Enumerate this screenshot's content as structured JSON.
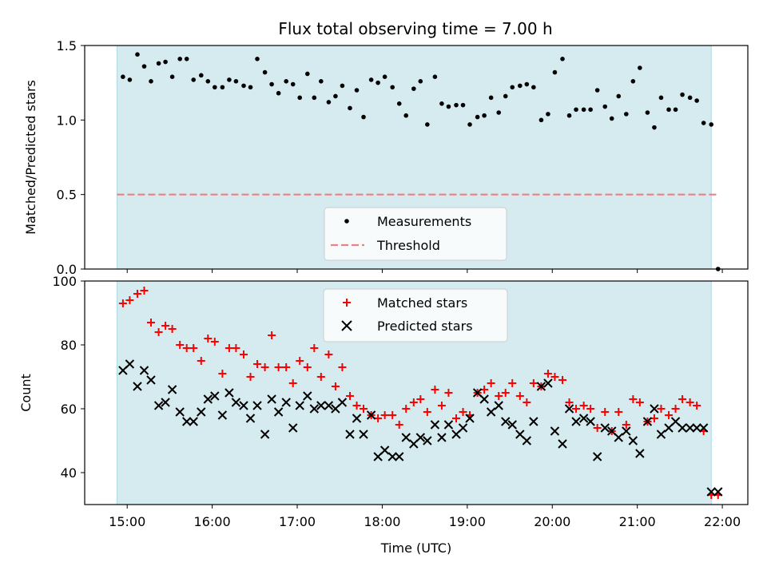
{
  "figure": {
    "title": "Flux total observing time = 7.00 h"
  },
  "chart_data": [
    {
      "type": "scatter",
      "ylabel": "Matched/Predicted stars",
      "xlabel": "",
      "ylim": [
        0,
        1.5
      ],
      "yticks": [
        0.0,
        0.5,
        1.0,
        1.5
      ],
      "ytick_labels": [
        "0.0",
        "0.5",
        "1.0",
        "1.5"
      ],
      "observing_window": {
        "start_hours": 14.88,
        "end_hours": 21.87,
        "color": "#d5ebf0"
      },
      "legend": {
        "position": "bottom-center",
        "entries": [
          "Measurements",
          "Threshold"
        ]
      },
      "threshold": {
        "name": "Threshold",
        "value": 0.5,
        "color": "#f08080",
        "xrange": [
          14.88,
          21.95
        ]
      },
      "series": [
        {
          "name": "Measurements",
          "color": "#000000",
          "x": [
            14.95,
            15.03,
            15.12,
            15.2,
            15.28,
            15.37,
            15.45,
            15.53,
            15.62,
            15.7,
            15.78,
            15.87,
            15.95,
            16.03,
            16.12,
            16.2,
            16.28,
            16.37,
            16.45,
            16.53,
            16.62,
            16.7,
            16.78,
            16.87,
            16.95,
            17.03,
            17.12,
            17.2,
            17.28,
            17.37,
            17.45,
            17.53,
            17.62,
            17.7,
            17.78,
            17.87,
            17.95,
            18.03,
            18.12,
            18.2,
            18.28,
            18.37,
            18.45,
            18.53,
            18.62,
            18.7,
            18.78,
            18.87,
            18.95,
            19.03,
            19.12,
            19.2,
            19.28,
            19.37,
            19.45,
            19.53,
            19.62,
            19.7,
            19.78,
            19.87,
            19.95,
            20.03,
            20.12,
            20.2,
            20.28,
            20.37,
            20.45,
            20.53,
            20.62,
            20.7,
            20.78,
            20.87,
            20.95,
            21.03,
            21.12,
            21.2,
            21.28,
            21.37,
            21.45,
            21.53,
            21.62,
            21.7,
            21.78,
            21.87,
            21.95
          ],
          "y": [
            1.29,
            1.27,
            1.44,
            1.36,
            1.26,
            1.38,
            1.39,
            1.29,
            1.41,
            1.41,
            1.27,
            1.3,
            1.26,
            1.22,
            1.22,
            1.27,
            1.26,
            1.23,
            1.22,
            1.41,
            1.32,
            1.24,
            1.18,
            1.26,
            1.24,
            1.15,
            1.31,
            1.15,
            1.26,
            1.12,
            1.16,
            1.23,
            1.08,
            1.2,
            1.02,
            1.27,
            1.25,
            1.29,
            1.22,
            1.11,
            1.03,
            1.21,
            1.26,
            0.97,
            1.29,
            1.11,
            1.09,
            1.1,
            1.1,
            0.97,
            1.02,
            1.03,
            1.15,
            1.05,
            1.16,
            1.22,
            1.23,
            1.24,
            1.22,
            1.0,
            1.04,
            1.32,
            1.41,
            1.03,
            1.07,
            1.07,
            1.07,
            1.2,
            1.09,
            1.01,
            1.16,
            1.04,
            1.26,
            1.35,
            1.05,
            0.95,
            1.15,
            1.07,
            1.07,
            1.17,
            1.15,
            1.13,
            0.98,
            0.97,
            0.0
          ]
        }
      ]
    },
    {
      "type": "scatter",
      "xlabel": "Time (UTC)",
      "ylabel": "Count",
      "ylim": [
        30,
        100
      ],
      "yticks": [
        40,
        60,
        80,
        100
      ],
      "ytick_labels": [
        "40",
        "60",
        "80",
        "100"
      ],
      "xlim": [
        14.5,
        22.3
      ],
      "xticks": [
        15,
        16,
        17,
        18,
        19,
        20,
        21,
        22
      ],
      "xtick_labels": [
        "15:00",
        "16:00",
        "17:00",
        "18:00",
        "19:00",
        "20:00",
        "21:00",
        "22:00"
      ],
      "observing_window": {
        "start_hours": 14.88,
        "end_hours": 21.87,
        "color": "#d5ebf0"
      },
      "legend": {
        "position": "top-center",
        "entries": [
          "Matched stars",
          "Predicted stars"
        ]
      },
      "series": [
        {
          "name": "Matched stars",
          "marker": "plus",
          "color": "#ff0000",
          "x": [
            14.95,
            15.03,
            15.12,
            15.2,
            15.28,
            15.37,
            15.45,
            15.53,
            15.62,
            15.7,
            15.78,
            15.87,
            15.95,
            16.03,
            16.12,
            16.2,
            16.28,
            16.37,
            16.45,
            16.53,
            16.62,
            16.7,
            16.78,
            16.87,
            16.95,
            17.03,
            17.12,
            17.2,
            17.28,
            17.37,
            17.45,
            17.53,
            17.62,
            17.7,
            17.78,
            17.87,
            17.95,
            18.03,
            18.12,
            18.2,
            18.28,
            18.37,
            18.45,
            18.53,
            18.62,
            18.7,
            18.78,
            18.87,
            18.95,
            19.03,
            19.12,
            19.2,
            19.28,
            19.37,
            19.45,
            19.53,
            19.62,
            19.7,
            19.78,
            19.87,
            19.95,
            20.03,
            20.12,
            20.2,
            20.28,
            20.37,
            20.45,
            20.53,
            20.62,
            20.7,
            20.78,
            20.87,
            20.95,
            21.03,
            21.12,
            21.2,
            21.28,
            21.37,
            21.45,
            21.53,
            21.62,
            21.7,
            21.78,
            21.87,
            21.95
          ],
          "y": [
            93,
            94,
            96,
            97,
            87,
            84,
            86,
            85,
            80,
            79,
            79,
            75,
            82,
            81,
            71,
            79,
            79,
            77,
            70,
            74,
            73,
            83,
            73,
            73,
            68,
            75,
            73,
            79,
            70,
            77,
            67,
            73,
            64,
            61,
            60,
            58,
            57,
            58,
            58,
            55,
            60,
            62,
            63,
            59,
            66,
            61,
            65,
            57,
            59,
            58,
            65,
            66,
            68,
            64,
            65,
            68,
            64,
            62,
            68,
            67,
            71,
            70,
            69,
            62,
            60,
            61,
            60,
            54,
            59,
            53,
            59,
            55,
            63,
            62,
            56,
            57,
            60,
            58,
            60,
            63,
            62,
            61,
            53,
            33,
            33
          ]
        },
        {
          "name": "Predicted stars",
          "marker": "x",
          "color": "#000000",
          "x": [
            14.95,
            15.03,
            15.12,
            15.2,
            15.28,
            15.37,
            15.45,
            15.53,
            15.62,
            15.7,
            15.78,
            15.87,
            15.95,
            16.03,
            16.12,
            16.2,
            16.28,
            16.37,
            16.45,
            16.53,
            16.62,
            16.7,
            16.78,
            16.87,
            16.95,
            17.03,
            17.12,
            17.2,
            17.28,
            17.37,
            17.45,
            17.53,
            17.62,
            17.7,
            17.78,
            17.87,
            17.95,
            18.03,
            18.12,
            18.2,
            18.28,
            18.37,
            18.45,
            18.53,
            18.62,
            18.7,
            18.78,
            18.87,
            18.95,
            19.03,
            19.12,
            19.2,
            19.28,
            19.37,
            19.45,
            19.53,
            19.62,
            19.7,
            19.78,
            19.87,
            19.95,
            20.03,
            20.12,
            20.2,
            20.28,
            20.37,
            20.45,
            20.53,
            20.62,
            20.7,
            20.78,
            20.87,
            20.95,
            21.03,
            21.12,
            21.2,
            21.28,
            21.37,
            21.45,
            21.53,
            21.62,
            21.7,
            21.78,
            21.87,
            21.95
          ],
          "y": [
            72,
            74,
            67,
            72,
            69,
            61,
            62,
            66,
            59,
            56,
            56,
            59,
            63,
            64,
            58,
            65,
            62,
            61,
            57,
            61,
            52,
            63,
            59,
            62,
            54,
            61,
            64,
            60,
            61,
            61,
            60,
            62,
            52,
            57,
            52,
            58,
            45,
            47,
            45,
            45,
            51,
            49,
            51,
            50,
            55,
            51,
            55,
            52,
            54,
            57,
            65,
            63,
            59,
            61,
            56,
            55,
            52,
            50,
            56,
            67,
            68,
            53,
            49,
            60,
            56,
            57,
            56,
            45,
            54,
            53,
            51,
            53,
            50,
            46,
            56,
            60,
            52,
            54,
            56,
            54,
            54,
            54,
            54,
            34,
            34
          ]
        }
      ]
    }
  ]
}
